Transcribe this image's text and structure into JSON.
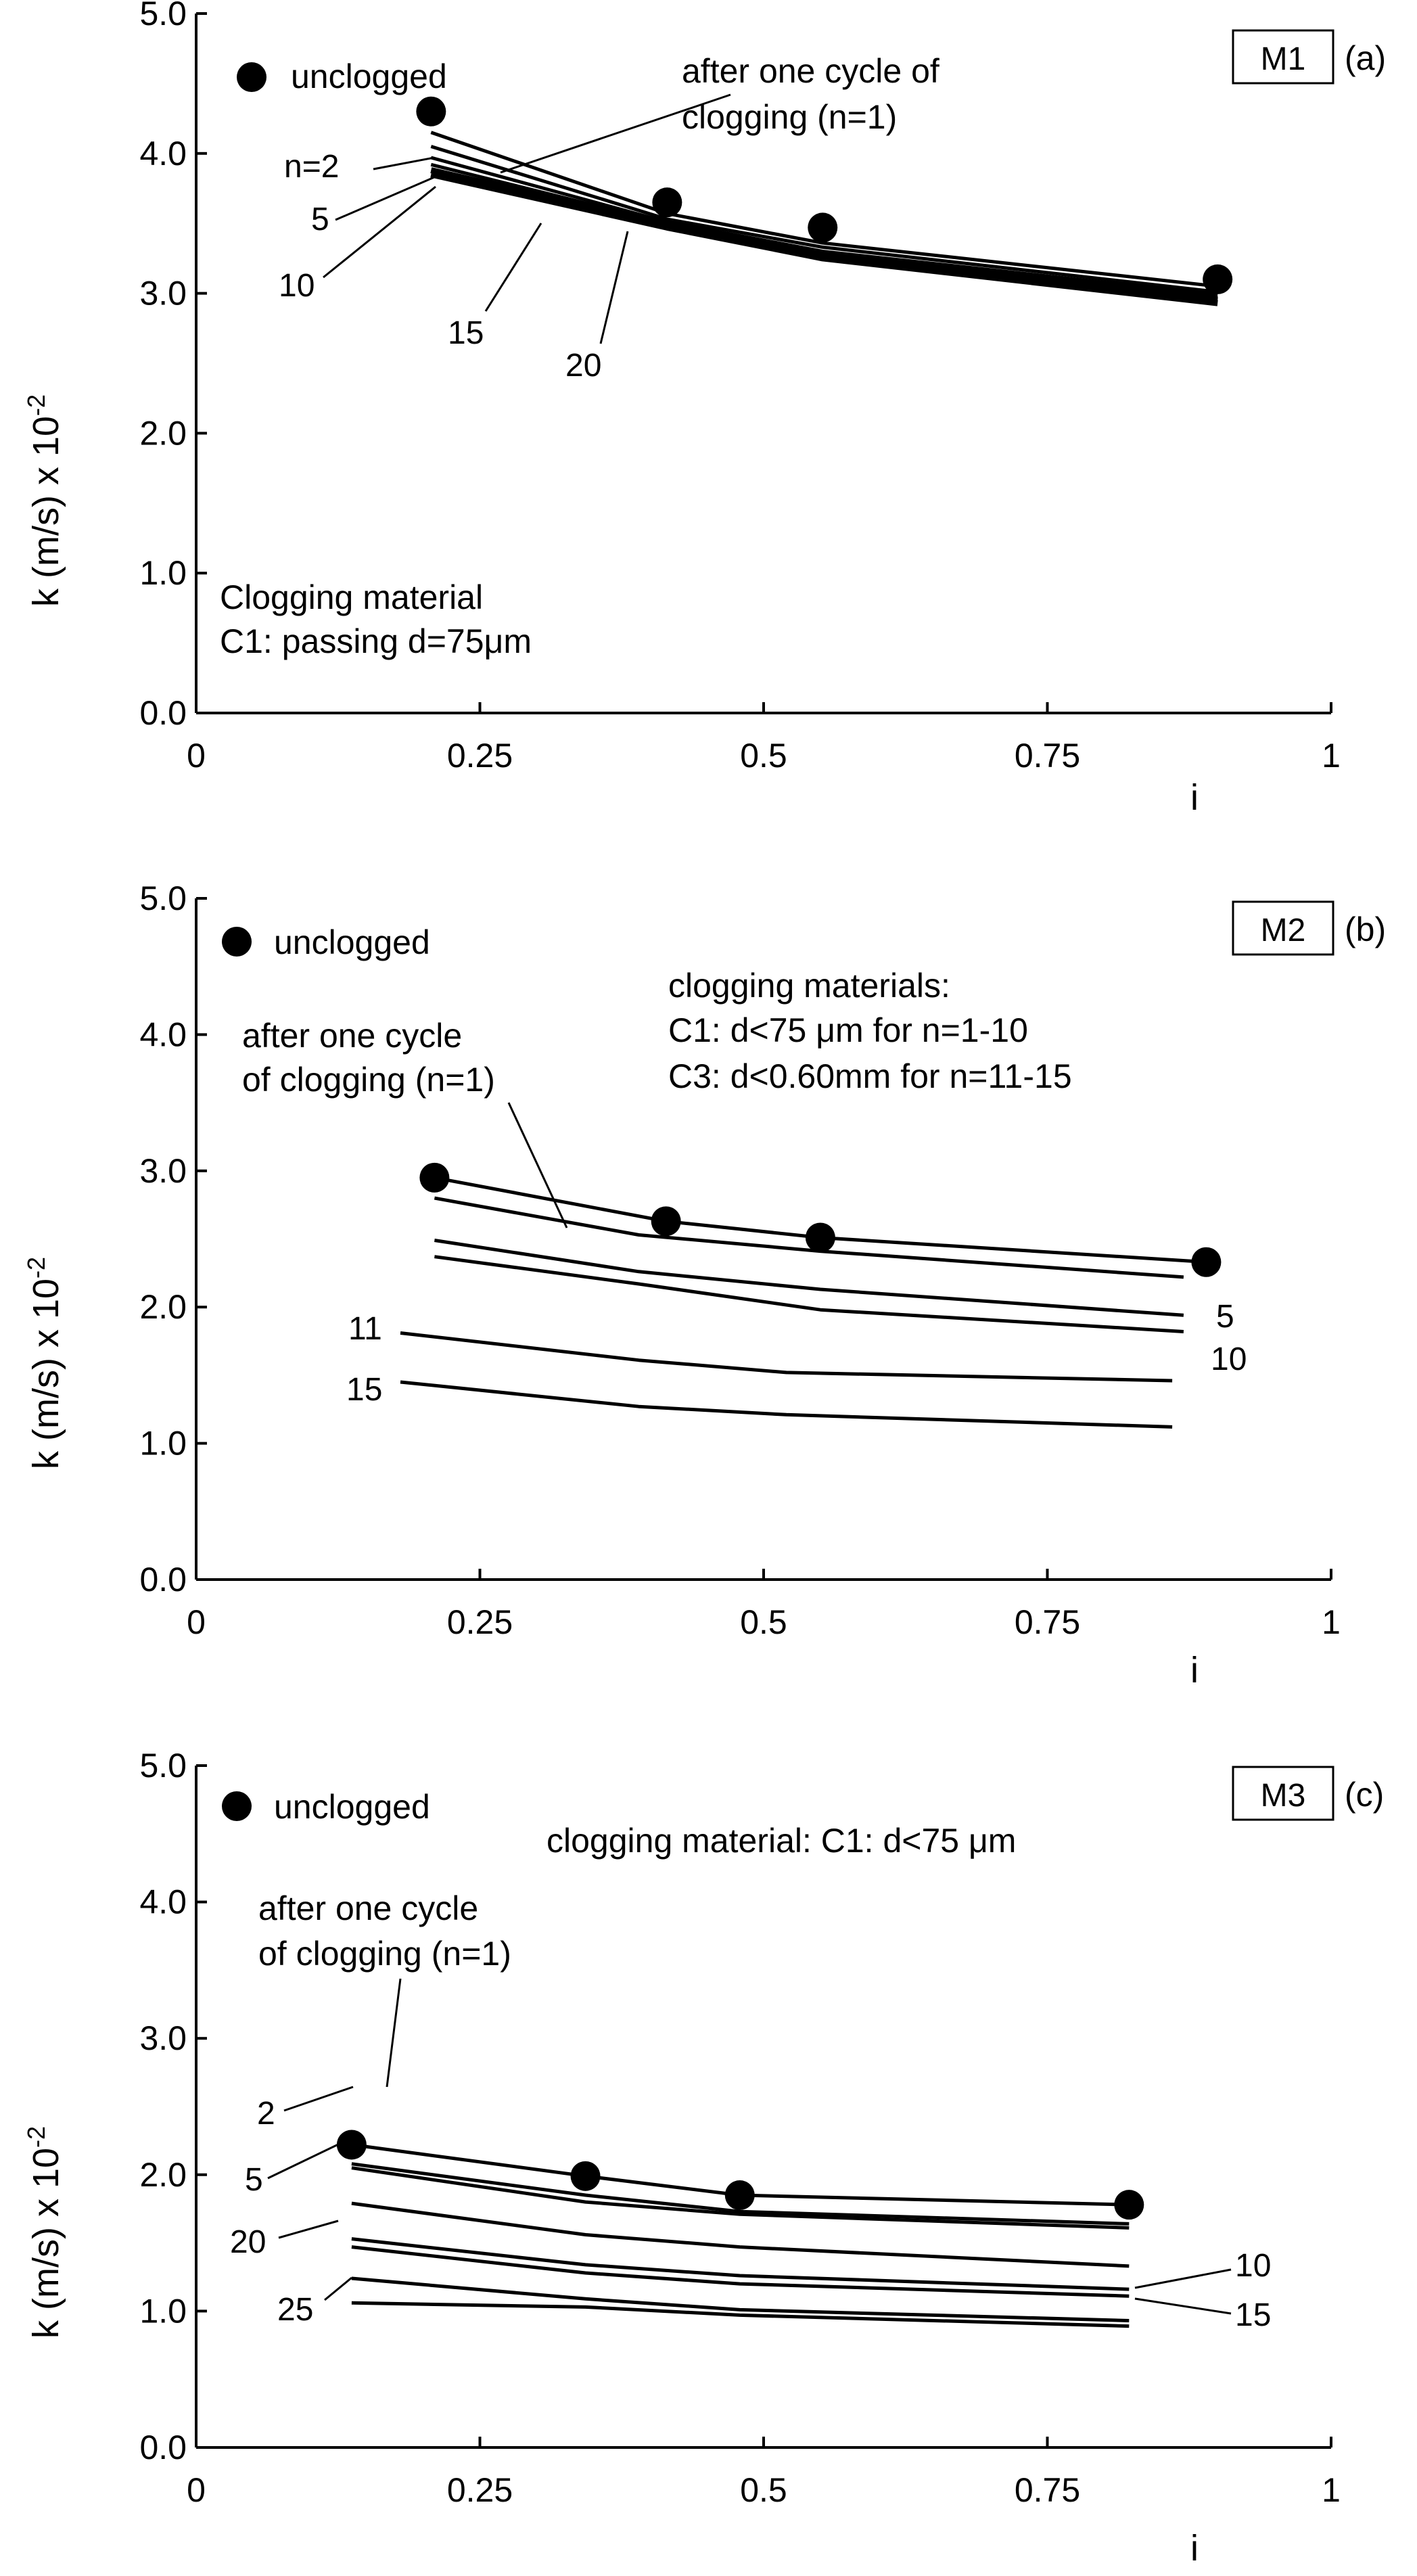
{
  "chart_data": [
    {
      "type": "line",
      "panel_tag": "M1",
      "panel_label": "(a)",
      "ylabel": "k (m/s) x 10",
      "ylabel_exponent": "-2",
      "xlabel": "i",
      "xlim": [
        0,
        1
      ],
      "ylim": [
        0,
        5
      ],
      "xticks": [
        0,
        0.25,
        0.5,
        0.75,
        1
      ],
      "xtick_labels": [
        "0",
        "0.25",
        "0.5",
        "0.75",
        "1"
      ],
      "yticks": [
        0,
        1,
        2,
        3,
        4,
        5
      ],
      "ytick_labels": [
        "0.0",
        "1.0",
        "2.0",
        "3.0",
        "4.0",
        "5.0"
      ],
      "legend": {
        "marker_label": "unclogged",
        "placement": "top-left"
      },
      "markers": {
        "name": "unclogged",
        "x": [
          0.207,
          0.415,
          0.552,
          0.9
        ],
        "y": [
          4.3,
          3.65,
          3.47,
          3.1
        ]
      },
      "series": [
        {
          "name": "n=1",
          "x": [
            0.207,
            0.415,
            0.552,
            0.9
          ],
          "y": [
            4.15,
            3.57,
            3.36,
            3.05
          ],
          "weight": 1
        },
        {
          "name": "n=2",
          "x": [
            0.207,
            0.415,
            0.552,
            0.9
          ],
          "y": [
            4.05,
            3.53,
            3.33,
            3.01
          ],
          "weight": 1
        },
        {
          "name": "n=5",
          "x": [
            0.207,
            0.415,
            0.552,
            0.9
          ],
          "y": [
            3.97,
            3.51,
            3.3,
            2.99
          ],
          "weight": 1
        },
        {
          "name": "n=10",
          "x": [
            0.207,
            0.415,
            0.552,
            0.9
          ],
          "y": [
            3.92,
            3.5,
            3.29,
            2.97
          ],
          "weight": 1
        },
        {
          "name": "n=15",
          "x": [
            0.207,
            0.415,
            0.552,
            0.9
          ],
          "y": [
            3.88,
            3.49,
            3.27,
            2.95
          ],
          "weight": 2
        },
        {
          "name": "n=20",
          "x": [
            0.207,
            0.415,
            0.552,
            0.9
          ],
          "y": [
            3.85,
            3.47,
            3.25,
            2.93
          ],
          "weight": 2
        }
      ],
      "annotations": {
        "after_cycle_line1": "after one cycle of",
        "after_cycle_line2": "clogging (n=1)",
        "material_line1": "Clogging material",
        "material_line2": "C1: passing d=75μm",
        "curve_labels": [
          "n=2",
          "5",
          "10",
          "15",
          "20"
        ]
      }
    },
    {
      "type": "line",
      "panel_tag": "M2",
      "panel_label": "(b)",
      "ylabel": "k (m/s) x 10",
      "ylabel_exponent": "-2",
      "xlabel": "i",
      "xlim": [
        0,
        1
      ],
      "ylim": [
        0,
        5
      ],
      "xticks": [
        0,
        0.25,
        0.5,
        0.75,
        1
      ],
      "xtick_labels": [
        "0",
        "0.25",
        "0.5",
        "0.75",
        "1"
      ],
      "yticks": [
        0,
        1,
        2,
        3,
        4,
        5
      ],
      "ytick_labels": [
        "0.0",
        "1.0",
        "2.0",
        "3.0",
        "4.0",
        "5.0"
      ],
      "legend": {
        "marker_label": "unclogged",
        "placement": "top-left"
      },
      "markers": {
        "name": "unclogged",
        "x": [
          0.21,
          0.414,
          0.55,
          0.89
        ],
        "y": [
          2.95,
          2.63,
          2.51,
          2.33
        ]
      },
      "series": [
        {
          "name": "unclogged",
          "x": [
            0.21,
            0.414,
            0.55,
            0.89
          ],
          "y": [
            2.95,
            2.63,
            2.51,
            2.33
          ],
          "weight": 1
        },
        {
          "name": "n=1",
          "x": [
            0.21,
            0.39,
            0.55,
            0.87
          ],
          "y": [
            2.8,
            2.53,
            2.41,
            2.22
          ],
          "weight": 1
        },
        {
          "name": "n=5",
          "x": [
            0.21,
            0.39,
            0.55,
            0.87
          ],
          "y": [
            2.49,
            2.26,
            2.13,
            1.94
          ],
          "weight": 1
        },
        {
          "name": "n=10",
          "x": [
            0.21,
            0.39,
            0.55,
            0.87
          ],
          "y": [
            2.37,
            2.17,
            1.98,
            1.82
          ],
          "weight": 1
        },
        {
          "name": "n=11",
          "x": [
            0.18,
            0.39,
            0.52,
            0.86
          ],
          "y": [
            1.81,
            1.61,
            1.52,
            1.46
          ],
          "weight": 1
        },
        {
          "name": "n=15",
          "x": [
            0.18,
            0.39,
            0.52,
            0.86
          ],
          "y": [
            1.45,
            1.27,
            1.21,
            1.12
          ],
          "weight": 1
        }
      ],
      "annotations": {
        "after_cycle_line1": "after one cycle",
        "after_cycle_line2": "of clogging (n=1)",
        "materials_line1": "clogging materials:",
        "materials_line2": "C1: d<75 μm for n=1-10",
        "materials_line3": "C3: d<0.60mm for n=11-15",
        "curve_labels": [
          "5",
          "10",
          "11",
          "15"
        ]
      }
    },
    {
      "type": "line",
      "panel_tag": "M3",
      "panel_label": "(c)",
      "ylabel": "k (m/s) x 10",
      "ylabel_exponent": "-2",
      "xlabel": "i",
      "xlim": [
        0,
        1
      ],
      "ylim": [
        0,
        5
      ],
      "xticks": [
        0,
        0.25,
        0.5,
        0.75,
        1
      ],
      "xtick_labels": [
        "0",
        "0.25",
        "0.5",
        "0.75",
        "1"
      ],
      "yticks": [
        0,
        1,
        2,
        3,
        4,
        5
      ],
      "ytick_labels": [
        "0.0",
        "1.0",
        "2.0",
        "3.0",
        "4.0",
        "5.0"
      ],
      "legend": {
        "marker_label": "unclogged",
        "placement": "top-left"
      },
      "markers": {
        "name": "unclogged",
        "x": [
          0.137,
          0.343,
          0.479,
          0.822
        ],
        "y": [
          2.22,
          1.99,
          1.85,
          1.78
        ]
      },
      "series": [
        {
          "name": "unclogged",
          "x": [
            0.137,
            0.343,
            0.479,
            0.822
          ],
          "y": [
            2.22,
            1.99,
            1.85,
            1.78
          ],
          "weight": 1
        },
        {
          "name": "n=1",
          "x": [
            0.137,
            0.343,
            0.479,
            0.822
          ],
          "y": [
            2.08,
            1.85,
            1.73,
            1.64
          ],
          "weight": 1
        },
        {
          "name": "n=2",
          "x": [
            0.137,
            0.343,
            0.479,
            0.822
          ],
          "y": [
            2.05,
            1.8,
            1.71,
            1.61
          ],
          "weight": 1
        },
        {
          "name": "n=5",
          "x": [
            0.137,
            0.343,
            0.479,
            0.822
          ],
          "y": [
            1.79,
            1.56,
            1.47,
            1.33
          ],
          "weight": 1
        },
        {
          "name": "n=10",
          "x": [
            0.137,
            0.343,
            0.479,
            0.822
          ],
          "y": [
            1.53,
            1.34,
            1.26,
            1.16
          ],
          "weight": 1
        },
        {
          "name": "n=15",
          "x": [
            0.137,
            0.343,
            0.479,
            0.822
          ],
          "y": [
            1.47,
            1.28,
            1.2,
            1.11
          ],
          "weight": 1
        },
        {
          "name": "n=20",
          "x": [
            0.137,
            0.343,
            0.479,
            0.822
          ],
          "y": [
            1.24,
            1.09,
            1.01,
            0.93
          ],
          "weight": 1
        },
        {
          "name": "n=25",
          "x": [
            0.137,
            0.343,
            0.479,
            0.822
          ],
          "y": [
            1.06,
            1.03,
            0.97,
            0.89
          ],
          "weight": 1
        }
      ],
      "annotations": {
        "after_cycle_line1": "after one cycle",
        "after_cycle_line2": "of clogging (n=1)",
        "material_line1": "clogging material: C1: d<75 μm",
        "curve_labels": [
          "2",
          "5",
          "20",
          "25",
          "10",
          "15"
        ]
      }
    }
  ]
}
